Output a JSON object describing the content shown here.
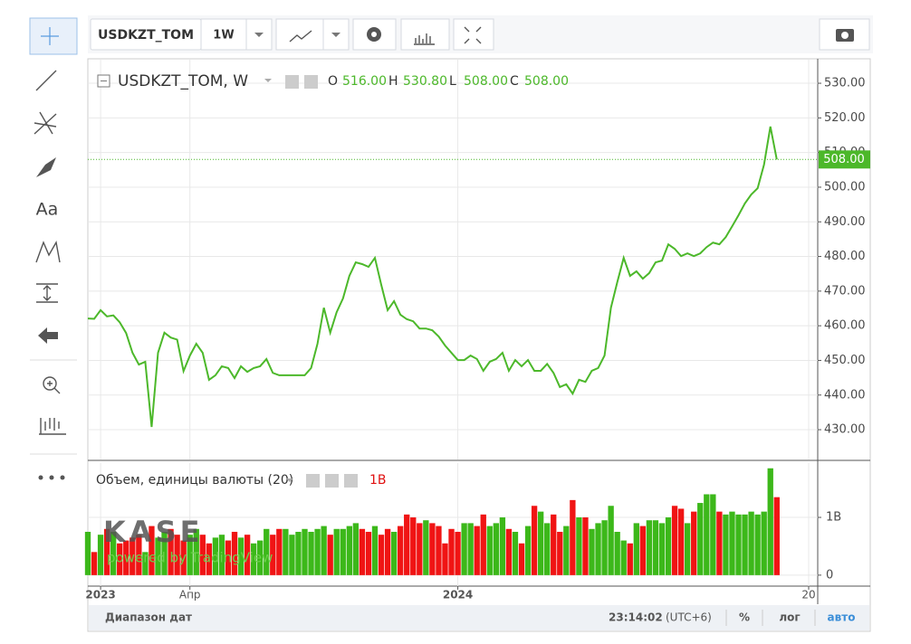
{
  "toolbar": {
    "symbol": "USDKZT_TOM",
    "interval": "1W"
  },
  "left_toolbar": {
    "text_tool": "Aa"
  },
  "chart_data": [
    {
      "type": "line",
      "title": "USDKZT_TOM, W",
      "ohlc": [
        {
          "label": "O",
          "value": "516.00"
        },
        {
          "label": "H",
          "value": "530.80"
        },
        {
          "label": "L",
          "value": "508.00"
        },
        {
          "label": "C",
          "value": "508.00"
        }
      ],
      "color": "#4cb82a",
      "categories": [
        null,
        null,
        "2023",
        null,
        null,
        null,
        null,
        null,
        null,
        null,
        null,
        null,
        null,
        null,
        null,
        null,
        "Апр",
        null,
        null,
        null,
        null,
        null,
        null,
        null,
        null,
        null,
        null,
        null,
        null,
        null,
        null,
        null,
        null,
        null,
        null,
        null,
        null,
        null,
        null,
        null,
        null,
        null,
        null,
        null,
        null,
        null,
        null,
        null,
        null,
        null,
        null,
        null,
        null,
        null,
        null,
        null,
        null,
        null,
        "2024",
        null,
        null,
        null,
        null,
        null,
        null,
        null,
        null,
        null,
        null,
        null,
        null,
        null,
        null,
        null,
        null,
        null,
        null,
        null,
        null,
        null,
        null,
        null,
        null,
        null,
        null,
        null,
        null,
        null,
        null,
        null,
        null,
        null,
        null,
        null,
        null,
        null,
        null,
        null,
        null,
        null,
        null,
        null,
        null,
        null,
        null,
        null,
        null,
        null,
        null,
        null,
        null,
        null,
        null,
        "20"
      ],
      "values": [
        462.1,
        462,
        464.5,
        462.7,
        463,
        461,
        457.9,
        452.2,
        448.8,
        449.6,
        430.8,
        452.2,
        458,
        456.6,
        456,
        446.9,
        451.4,
        454.8,
        452.2,
        444.4,
        445.7,
        448.3,
        447.8,
        444.9,
        448.3,
        446.7,
        447.8,
        448.3,
        450.4,
        446.4,
        445.7,
        445.7,
        445.7,
        445.7,
        445.7,
        447.8,
        454.8,
        465.2,
        458,
        463.9,
        467.9,
        474.4,
        478.3,
        477.8,
        477,
        479.6,
        471.8,
        464.5,
        467.1,
        463.2,
        461.9,
        461.3,
        459.2,
        459.2,
        458.7,
        456.9,
        454.3,
        452.2,
        450.1,
        450.1,
        451.4,
        450.4,
        447,
        449.6,
        450.4,
        452.2,
        447,
        450.1,
        448.3,
        450.1,
        447,
        447,
        449,
        446.4,
        442.3,
        443.1,
        440.4,
        444.4,
        443.8,
        447,
        447.8,
        451.4,
        465.2,
        472.6,
        479.6,
        474.4,
        475.7,
        473.6,
        475.2,
        478.3,
        478.8,
        483.5,
        482.2,
        480.1,
        480.9,
        480.1,
        480.9,
        482.7,
        484,
        483.5,
        485.6,
        488.7,
        491.9,
        495.3,
        497.9,
        499.7,
        506.5,
        517.5,
        508,
        null,
        null,
        null,
        null,
        null
      ],
      "ylim": [
        421.4,
        536.8
      ],
      "yticks": [
        {
          "value": 430,
          "label": "430.00"
        },
        {
          "value": 440,
          "label": "440.00"
        },
        {
          "value": 450,
          "label": "450.00"
        },
        {
          "value": 460,
          "label": "460.00"
        },
        {
          "value": 470,
          "label": "470.00"
        },
        {
          "value": 480,
          "label": "480.00"
        },
        {
          "value": 490,
          "label": "490.00"
        },
        {
          "value": 500,
          "label": "500.00"
        },
        {
          "value": 510,
          "label": "510.00"
        },
        {
          "value": 520,
          "label": "520.00"
        },
        {
          "value": 530,
          "label": "530.00"
        }
      ],
      "last_value": {
        "value": 508,
        "label": "508.00"
      },
      "grid": true
    },
    {
      "type": "bar",
      "title": "Объем, единицы валюты (20)",
      "last_label": "1B",
      "up_color": "#3cb81a",
      "down_color": "#f01414",
      "values": [
        0.75,
        0.4,
        0.7,
        0.8,
        0.75,
        0.55,
        0.6,
        0.65,
        0.7,
        0.4,
        0.85,
        0.65,
        0.75,
        0.8,
        0.7,
        0.6,
        0.7,
        0.8,
        0.7,
        0.55,
        0.65,
        0.7,
        0.6,
        0.75,
        0.65,
        0.7,
        0.55,
        0.6,
        0.8,
        0.7,
        0.8,
        0.8,
        0.7,
        0.75,
        0.8,
        0.75,
        0.8,
        0.85,
        0.7,
        0.8,
        0.8,
        0.85,
        0.9,
        0.8,
        0.75,
        0.85,
        0.7,
        0.8,
        0.75,
        0.85,
        1.05,
        1.0,
        0.9,
        0.95,
        0.9,
        0.85,
        0.55,
        0.8,
        0.75,
        0.9,
        0.9,
        0.85,
        1.05,
        0.85,
        0.9,
        1.0,
        0.8,
        0.75,
        0.55,
        0.85,
        1.2,
        1.1,
        0.9,
        1.05,
        0.75,
        0.85,
        1.3,
        1.0,
        1.0,
        0.8,
        0.9,
        0.95,
        1.2,
        0.75,
        0.6,
        0.55,
        0.9,
        0.85,
        0.95,
        0.95,
        0.9,
        1.0,
        1.2,
        1.15,
        0.9,
        1.1,
        1.25,
        1.4,
        1.4,
        1.1,
        1.05,
        1.1,
        1.05,
        1.05,
        1.1,
        1.05,
        1.1,
        1.85,
        1.35,
        null,
        null,
        null,
        null,
        null
      ],
      "ylim": [
        -0.19,
        1.94
      ],
      "yticks": [
        0,
        {
          "value": 1,
          "label": "1B"
        }
      ]
    }
  ],
  "watermark": {
    "logo": "KASE",
    "caption": "powered by TradingView"
  },
  "status_bar": {
    "range": "Диапазон дат",
    "time": "23:14:02",
    "timezone": "(UTC+6)",
    "percent": "%",
    "log": "лог",
    "auto": "авто"
  }
}
